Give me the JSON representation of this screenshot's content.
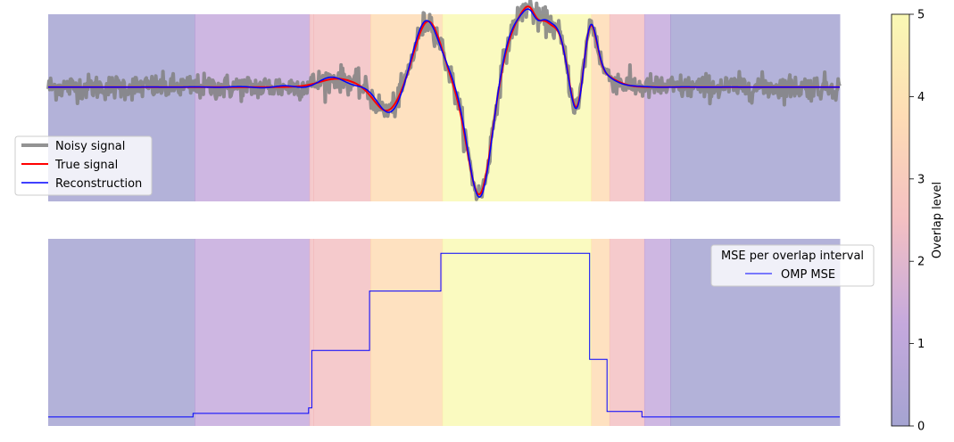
{
  "chart_data": [
    {
      "type": "line",
      "panel": "signal",
      "x_range": [
        0,
        1000
      ],
      "overlap_bands": [
        {
          "x0": 0,
          "x1": 185,
          "level": 1
        },
        {
          "x0": 185,
          "x1": 330,
          "level": 2
        },
        {
          "x0": 330,
          "x1": 335,
          "level": 3
        },
        {
          "x0": 335,
          "x1": 407,
          "level": 3
        },
        {
          "x0": 407,
          "x1": 498,
          "level": 4
        },
        {
          "x0": 498,
          "x1": 686,
          "level": 5
        },
        {
          "x0": 686,
          "x1": 709,
          "level": 4
        },
        {
          "x0": 709,
          "x1": 753,
          "level": 3
        },
        {
          "x0": 753,
          "x1": 786,
          "level": 2
        },
        {
          "x0": 786,
          "x1": 1000,
          "level": 1
        }
      ],
      "true_signal_components": [
        {
          "center": 365,
          "amp": 0.12,
          "width": 22
        },
        {
          "center": 428,
          "amp": -0.35,
          "width": 16
        },
        {
          "center": 480,
          "amp": 0.95,
          "width": 17
        },
        {
          "center": 545,
          "amp": -1.6,
          "width": 15
        },
        {
          "center": 598,
          "amp": 0.95,
          "width": 22
        },
        {
          "center": 620,
          "amp": 0.7,
          "width": 12
        },
        {
          "center": 618,
          "amp": -0.35,
          "width": 7
        },
        {
          "center": 645,
          "amp": 0.6,
          "width": 10
        },
        {
          "center": 668,
          "amp": -0.5,
          "width": 8
        },
        {
          "center": 685,
          "amp": 0.75,
          "width": 8
        },
        {
          "center": 693,
          "amp": 0.2,
          "width": 20
        }
      ],
      "noise_std": 0.09,
      "ylim": [
        -1.65,
        1.05
      ],
      "series": [
        {
          "name": "Noisy signal",
          "color": "#808080",
          "linewidth": 4,
          "alpha": 0.85
        },
        {
          "name": "True signal",
          "color": "#ff0000",
          "linewidth": 2
        },
        {
          "name": "Reconstruction",
          "color": "#0000ff",
          "linewidth": 1.5
        }
      ],
      "legend": "center-left"
    },
    {
      "type": "line",
      "panel": "mse",
      "x_range": [
        0,
        1000
      ],
      "series": [
        {
          "name": "OMP MSE",
          "color": "#0000ff",
          "steps": [
            {
              "x0": 0,
              "x1": 183,
              "value": 0.05
            },
            {
              "x0": 183,
              "x1": 329,
              "value": 0.07
            },
            {
              "x0": 329,
              "x1": 333,
              "value": 0.1
            },
            {
              "x0": 333,
              "x1": 406,
              "value": 0.42
            },
            {
              "x0": 406,
              "x1": 496,
              "value": 0.75
            },
            {
              "x0": 496,
              "x1": 684,
              "value": 0.96
            },
            {
              "x0": 684,
              "x1": 706,
              "value": 0.37
            },
            {
              "x0": 706,
              "x1": 750,
              "value": 0.08
            },
            {
              "x0": 750,
              "x1": 1000,
              "value": 0.05
            }
          ]
        }
      ],
      "ylim": [
        0,
        1.04
      ],
      "legend_title": "MSE per overlap interval",
      "legend": "upper-right"
    }
  ],
  "colorbar": {
    "label": "Overlap level",
    "min": 0,
    "max": 5,
    "ticks": [
      "0",
      "1",
      "2",
      "3",
      "4",
      "5"
    ],
    "colors": [
      "#7472b9",
      "#a67bcb",
      "#ed9ea2",
      "#fdc98d",
      "#f6f58c"
    ],
    "alpha": 0.55
  }
}
